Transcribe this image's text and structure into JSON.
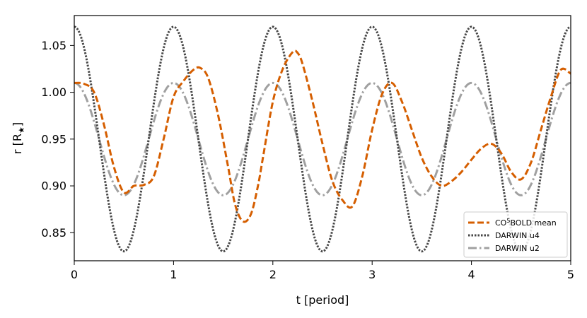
{
  "chart_data": {
    "type": "line",
    "xlabel": "t [period]",
    "ylabel_main": "r [R",
    "ylabel_sub": "★",
    "ylabel_close": "]",
    "xlim": [
      0,
      5
    ],
    "ylim": [
      0.82,
      1.082
    ],
    "xticks": [
      {
        "value": 0,
        "label": "0"
      },
      {
        "value": 1,
        "label": "1"
      },
      {
        "value": 2,
        "label": "2"
      },
      {
        "value": 3,
        "label": "3"
      },
      {
        "value": 4,
        "label": "4"
      },
      {
        "value": 5,
        "label": "5"
      }
    ],
    "yticks": [
      {
        "value": 0.85,
        "label": "0.85"
      },
      {
        "value": 0.9,
        "label": "0.90"
      },
      {
        "value": 0.95,
        "label": "0.95"
      },
      {
        "value": 1.0,
        "label": "1.00"
      },
      {
        "value": 1.05,
        "label": "1.05"
      }
    ],
    "grid": false,
    "legend_position": "lower right",
    "series": [
      {
        "name": "CO⁵BOLD mean",
        "legend_main": "CO",
        "legend_sup": "5",
        "legend_rest": "BOLD mean",
        "color": "#d55e00",
        "dash": "9,4",
        "points": [
          [
            0.0,
            1.01
          ],
          [
            0.1,
            1.009
          ],
          [
            0.2,
            1.0
          ],
          [
            0.3,
            0.965
          ],
          [
            0.4,
            0.92
          ],
          [
            0.5,
            0.893
          ],
          [
            0.6,
            0.9
          ],
          [
            0.7,
            0.901
          ],
          [
            0.8,
            0.91
          ],
          [
            0.9,
            0.95
          ],
          [
            1.0,
            0.995
          ],
          [
            1.1,
            1.012
          ],
          [
            1.2,
            1.024
          ],
          [
            1.27,
            1.026
          ],
          [
            1.35,
            1.015
          ],
          [
            1.45,
            0.975
          ],
          [
            1.55,
            0.92
          ],
          [
            1.62,
            0.88
          ],
          [
            1.7,
            0.862
          ],
          [
            1.78,
            0.87
          ],
          [
            1.85,
            0.9
          ],
          [
            1.9,
            0.93
          ],
          [
            2.0,
            0.99
          ],
          [
            2.1,
            1.025
          ],
          [
            2.2,
            1.043
          ],
          [
            2.25,
            1.042
          ],
          [
            2.3,
            1.03
          ],
          [
            2.4,
            0.99
          ],
          [
            2.5,
            0.945
          ],
          [
            2.6,
            0.905
          ],
          [
            2.7,
            0.885
          ],
          [
            2.8,
            0.878
          ],
          [
            2.9,
            0.91
          ],
          [
            3.0,
            0.96
          ],
          [
            3.1,
            0.998
          ],
          [
            3.2,
            1.01
          ],
          [
            3.3,
            0.99
          ],
          [
            3.4,
            0.96
          ],
          [
            3.5,
            0.93
          ],
          [
            3.6,
            0.91
          ],
          [
            3.7,
            0.9
          ],
          [
            3.8,
            0.905
          ],
          [
            3.9,
            0.915
          ],
          [
            4.0,
            0.928
          ],
          [
            4.1,
            0.94
          ],
          [
            4.2,
            0.945
          ],
          [
            4.3,
            0.935
          ],
          [
            4.4,
            0.915
          ],
          [
            4.5,
            0.907
          ],
          [
            4.6,
            0.925
          ],
          [
            4.7,
            0.96
          ],
          [
            4.8,
            0.995
          ],
          [
            4.9,
            1.024
          ],
          [
            5.0,
            1.02
          ]
        ]
      },
      {
        "name": "DARWIN u4",
        "color": "#474747",
        "dash": "2.5,2",
        "function": "cos",
        "mean": 0.95,
        "amplitude": 0.12,
        "period": 1.0,
        "phase": 0.0
      },
      {
        "name": "DARWIN u2",
        "color": "#a0a0a0",
        "dash": "12,4,2.5,4",
        "function": "cos",
        "mean": 0.95,
        "amplitude": 0.06,
        "period": 1.0,
        "phase": 0.0
      }
    ]
  }
}
